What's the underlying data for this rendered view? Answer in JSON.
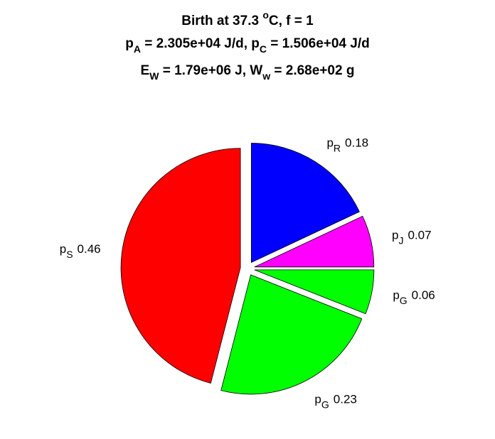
{
  "chart_data": {
    "type": "pie",
    "title": [
      [
        {
          "text": "Birth at 37.3 "
        },
        {
          "sup": "o"
        },
        {
          "text": "C, f = 1"
        }
      ],
      [
        {
          "text": "p"
        },
        {
          "sub": "A"
        },
        {
          "text": " = 2.305e+04 J/d, p"
        },
        {
          "sub": "C"
        },
        {
          "text": " = 1.506e+04 J/d"
        }
      ],
      [
        {
          "text": "E"
        },
        {
          "sub": "W"
        },
        {
          "text": " = 1.79e+06 J, W"
        },
        {
          "sub": "w"
        },
        {
          "text": " = 2.68e+02 g"
        }
      ]
    ],
    "categories": [
      {
        "text": "p",
        "sub": "R"
      },
      {
        "text": "p",
        "sub": "J"
      },
      {
        "text": "p",
        "sub": "G"
      },
      {
        "text": "p",
        "sub": "G"
      },
      {
        "text": "p",
        "sub": "S"
      }
    ],
    "values": [
      0.18,
      0.07,
      0.06,
      0.23,
      0.46
    ],
    "colors": [
      "#0000ff",
      "#ff00ff",
      "#00ff00",
      "#00ff00",
      "#ff0000"
    ],
    "exploded": true
  }
}
